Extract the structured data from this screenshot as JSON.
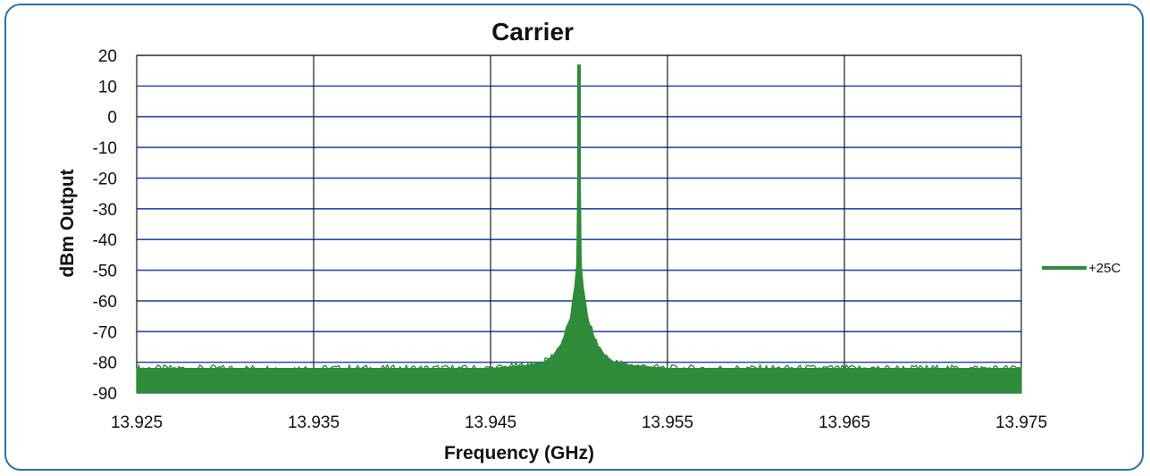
{
  "chart_data": {
    "type": "line",
    "title": "Carrier",
    "xlabel": "Frequency (GHz)",
    "ylabel": "dBm Output",
    "xlim": [
      13.925,
      13.975
    ],
    "ylim": [
      -90,
      20
    ],
    "x_ticks": [
      "13.925",
      "13.935",
      "13.945",
      "13.955",
      "13.965",
      "13.975"
    ],
    "y_ticks": [
      "20",
      "10",
      "0",
      "-10",
      "-20",
      "-30",
      "-40",
      "-50",
      "-60",
      "-70",
      "-80",
      "-90"
    ],
    "grid": true,
    "legend_position": "right",
    "noise_floor_dbm": -82,
    "series": [
      {
        "name": "+25C",
        "color": "#2e8b3a",
        "peak": {
          "x": 13.95,
          "y": 17
        },
        "points": [
          [
            13.925,
            -82
          ],
          [
            13.93,
            -82
          ],
          [
            13.935,
            -82
          ],
          [
            13.94,
            -82
          ],
          [
            13.945,
            -82
          ],
          [
            13.947,
            -81
          ],
          [
            13.948,
            -80
          ],
          [
            13.9485,
            -78
          ],
          [
            13.949,
            -74
          ],
          [
            13.9495,
            -66
          ],
          [
            13.9498,
            -55
          ],
          [
            13.9499,
            -46
          ],
          [
            13.95,
            17
          ],
          [
            13.9501,
            -46
          ],
          [
            13.9502,
            -55
          ],
          [
            13.9505,
            -66
          ],
          [
            13.951,
            -74
          ],
          [
            13.9515,
            -78
          ],
          [
            13.952,
            -80
          ],
          [
            13.953,
            -81
          ],
          [
            13.955,
            -82
          ],
          [
            13.96,
            -82
          ],
          [
            13.965,
            -82
          ],
          [
            13.97,
            -82
          ],
          [
            13.975,
            -82
          ]
        ]
      }
    ]
  }
}
